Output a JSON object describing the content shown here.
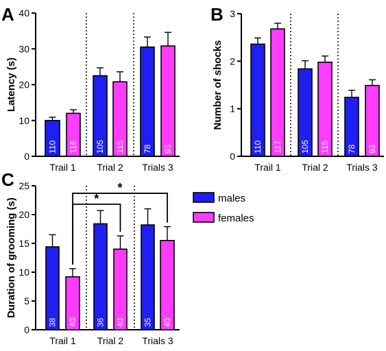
{
  "colors": {
    "males": "#1f1ff0",
    "females": "#ff3cff"
  },
  "legend": [
    {
      "name": "males",
      "color": "#1f1ff0"
    },
    {
      "name": "females",
      "color": "#ff3cff"
    }
  ],
  "chart_data": [
    {
      "panel": "A",
      "type": "bar",
      "ylabel": "Latency (s)",
      "ylim": [
        0,
        40
      ],
      "yticks": [
        0,
        10,
        20,
        30,
        40
      ],
      "categories": [
        "Trail 1",
        "Trial 2",
        "Trials 3"
      ],
      "series": [
        {
          "name": "males",
          "values": [
            10.0,
            22.5,
            30.5
          ],
          "errors": [
            0.9,
            2.2,
            2.8
          ],
          "n": [
            "110",
            "105",
            "78"
          ]
        },
        {
          "name": "females",
          "values": [
            12.0,
            20.8,
            30.8
          ],
          "errors": [
            1.0,
            2.8,
            3.8
          ],
          "n": [
            "116",
            "115",
            "93"
          ]
        }
      ]
    },
    {
      "panel": "B",
      "type": "bar",
      "ylabel": "Number of shocks",
      "ylim": [
        0,
        3
      ],
      "yticks": [
        0,
        1,
        2,
        3
      ],
      "categories": [
        "Trail 1",
        "Trial 2",
        "Trials 3"
      ],
      "series": [
        {
          "name": "males",
          "values": [
            2.36,
            1.84,
            1.24
          ],
          "errors": [
            0.13,
            0.17,
            0.15
          ],
          "n": [
            "110",
            "105",
            "78"
          ]
        },
        {
          "name": "females",
          "values": [
            2.68,
            1.98,
            1.49
          ],
          "errors": [
            0.12,
            0.13,
            0.12
          ],
          "n": [
            "117",
            "115",
            "93"
          ]
        }
      ]
    },
    {
      "panel": "C",
      "type": "bar",
      "ylabel": "Duration of grooming (s)",
      "ylim": [
        0,
        25
      ],
      "yticks": [
        0,
        5,
        10,
        15,
        20,
        25
      ],
      "categories": [
        "Trail 1",
        "Trial 2",
        "Trials 3"
      ],
      "series": [
        {
          "name": "males",
          "values": [
            14.4,
            18.4,
            18.2
          ],
          "errors": [
            2.1,
            2.3,
            2.8
          ],
          "n": [
            "38",
            "36",
            "35"
          ]
        },
        {
          "name": "females",
          "values": [
            9.2,
            14.0,
            15.5
          ],
          "errors": [
            1.4,
            2.3,
            2.4
          ],
          "n": [
            "40",
            "40",
            "40"
          ]
        }
      ],
      "annotations": [
        {
          "text": "*",
          "from": [
            0,
            1
          ],
          "to": [
            1,
            1
          ],
          "y": 21.8
        },
        {
          "text": "*",
          "from": [
            0,
            1
          ],
          "to": [
            2,
            1
          ],
          "y": 23.7
        }
      ]
    }
  ]
}
